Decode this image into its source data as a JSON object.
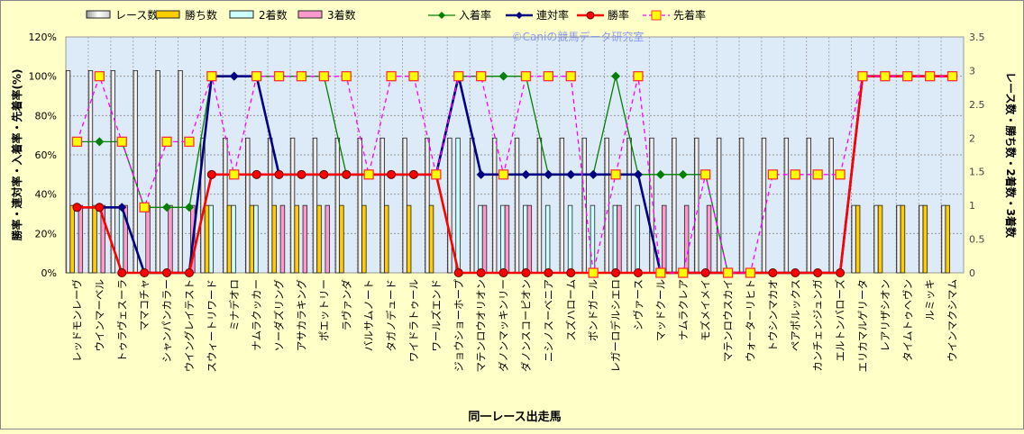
{
  "chart_data": {
    "type": "bar",
    "watermark": "©Caniの競馬データ研究室",
    "xlabel": "同一レース出走馬",
    "ylabel_left": "勝率・連対率・入着率・先着率(%)",
    "ylabel_right": "レース数・勝ち数・2着数・3着数",
    "ylim_left": [
      0,
      120
    ],
    "ylim_right": [
      0,
      3.5
    ],
    "left_ticks": [
      "0%",
      "20%",
      "40%",
      "60%",
      "80%",
      "100%",
      "120%"
    ],
    "right_ticks": [
      "0",
      "0.5",
      "1",
      "1.5",
      "2",
      "2.5",
      "3",
      "3.5"
    ],
    "grid": true,
    "legend_position": "top",
    "legend": [
      "レース数",
      "勝ち数",
      "2着数",
      "3着数",
      "入着率",
      "連対率",
      "勝率",
      "先着率"
    ],
    "colors": {
      "races": "#FFFFFF",
      "wins": "#FFCC00",
      "second": "#CCFFFF",
      "third": "#FF99CC",
      "place_rate": "#008000",
      "quinella_rate": "#000080",
      "win_rate": "#FF0000",
      "beat_rate": "#FF00FF"
    },
    "categories": [
      "レッドモンレーヴ",
      "ウインマーベル",
      "トゥラヴェスーラ",
      "ママコチャ",
      "シャンパンカラー",
      "ウイングレイテスト",
      "スウィートリワード",
      "ミナデオロ",
      "ナムラクッカー",
      "ソーダズリング",
      "アサカラキング",
      "ポエットリー",
      "ラヴァンダ",
      "バルサムノート",
      "タガノデュード",
      "ワイドラトゥール",
      "ワールズエンド",
      "ジョウショーホープ",
      "マテンロウオリオン",
      "ダノンマッキンリー",
      "ダノンスコーピオン",
      "ニシノスーベニア",
      "スズハローム",
      "ボンドガール",
      "レガーロデルシエロ",
      "シヴァース",
      "マッドクール",
      "ナムラクレア",
      "モズメイメイ",
      "マテンロウスカイ",
      "ウォーターリヒト",
      "トウシンマカオ",
      "ペアポルックス",
      "カンチェンジュンガ",
      "エルトンバローズ",
      "エリカマルゲリータ",
      "レアリザシオン",
      "タイムトゥヘヴン",
      "ルミッキ",
      "ウインマクシマム"
    ],
    "series": [
      {
        "name": "レース数",
        "axis": "right",
        "kind": "bar",
        "values": [
          3,
          3,
          3,
          3,
          3,
          3,
          2,
          2,
          2,
          2,
          2,
          2,
          2,
          2,
          2,
          2,
          2,
          2,
          2,
          2,
          2,
          2,
          2,
          2,
          2,
          2,
          2,
          2,
          2,
          2,
          2,
          2,
          2,
          2,
          2,
          1,
          1,
          1,
          1,
          1
        ]
      },
      {
        "name": "勝ち数",
        "axis": "right",
        "kind": "bar",
        "values": [
          1,
          1,
          0,
          0,
          0,
          0,
          1,
          1,
          1,
          1,
          1,
          1,
          1,
          1,
          1,
          1,
          1,
          0,
          0,
          0,
          0,
          0,
          0,
          0,
          0,
          0,
          0,
          0,
          0,
          0,
          0,
          0,
          0,
          0,
          0,
          1,
          1,
          1,
          1,
          1
        ]
      },
      {
        "name": "2着数",
        "axis": "right",
        "kind": "bar",
        "values": [
          0,
          0,
          1,
          0,
          0,
          0,
          1,
          1,
          1,
          0,
          0,
          0,
          0,
          0,
          0,
          0,
          0,
          2,
          1,
          1,
          1,
          1,
          1,
          1,
          1,
          1,
          0,
          0,
          0,
          0,
          0,
          0,
          0,
          0,
          0,
          0,
          0,
          0,
          0,
          0
        ]
      },
      {
        "name": "3着数",
        "axis": "right",
        "kind": "bar",
        "values": [
          1,
          1,
          1,
          1,
          1,
          1,
          0,
          0,
          0,
          1,
          1,
          1,
          0,
          0,
          0,
          0,
          0,
          0,
          1,
          1,
          1,
          0,
          0,
          0,
          1,
          0,
          1,
          1,
          1,
          0,
          0,
          0,
          0,
          0,
          0,
          0,
          0,
          0,
          0,
          0
        ]
      },
      {
        "name": "入着率",
        "axis": "left",
        "kind": "line",
        "values": [
          66.7,
          66.7,
          66.7,
          33.3,
          33.3,
          33.3,
          100,
          100,
          100,
          100,
          100,
          100,
          50,
          50,
          50,
          50,
          50,
          100,
          100,
          100,
          100,
          50,
          50,
          50,
          100,
          50,
          50,
          50,
          50,
          0,
          0,
          0,
          0,
          0,
          0,
          100,
          100,
          100,
          100,
          100
        ]
      },
      {
        "name": "連対率",
        "axis": "left",
        "kind": "line",
        "values": [
          33.3,
          33.3,
          33.3,
          0,
          0,
          0,
          100,
          100,
          100,
          50,
          50,
          50,
          50,
          50,
          50,
          50,
          50,
          100,
          50,
          50,
          50,
          50,
          50,
          50,
          50,
          50,
          0,
          0,
          0,
          0,
          0,
          0,
          0,
          0,
          0,
          100,
          100,
          100,
          100,
          100
        ]
      },
      {
        "name": "勝率",
        "axis": "left",
        "kind": "line",
        "values": [
          33.3,
          33.3,
          0,
          0,
          0,
          0,
          50,
          50,
          50,
          50,
          50,
          50,
          50,
          50,
          50,
          50,
          50,
          0,
          0,
          0,
          0,
          0,
          0,
          0,
          0,
          0,
          0,
          0,
          0,
          0,
          0,
          0,
          0,
          0,
          0,
          100,
          100,
          100,
          100,
          100
        ]
      },
      {
        "name": "先着率",
        "axis": "left",
        "kind": "line",
        "values": [
          66.7,
          100,
          66.7,
          33.3,
          66.7,
          66.7,
          100,
          50,
          100,
          100,
          100,
          100,
          100,
          50,
          100,
          100,
          50,
          100,
          100,
          50,
          100,
          100,
          100,
          0,
          50,
          100,
          0,
          0,
          50,
          0,
          0,
          50,
          50,
          50,
          50,
          100,
          100,
          100,
          100,
          100
        ]
      }
    ]
  }
}
